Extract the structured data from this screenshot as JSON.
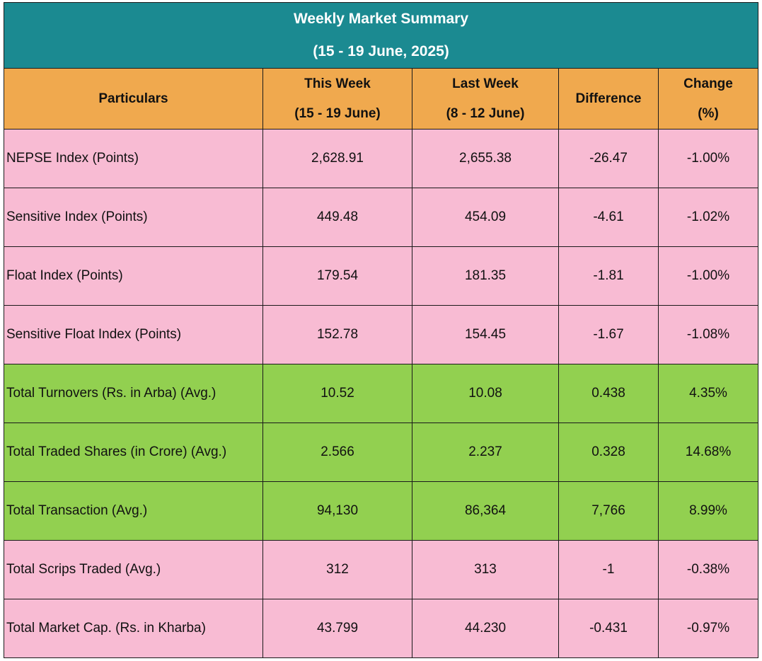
{
  "title": {
    "line1": "Weekly Market Summary",
    "line2": "(15 - 19 June, 2025)"
  },
  "headers": {
    "particulars": "Particulars",
    "this_week": {
      "line1": "This Week",
      "line2": "(15 - 19 June)"
    },
    "last_week": {
      "line1": "Last Week",
      "line2": "(8 - 12 June)"
    },
    "difference": "Difference",
    "change": {
      "line1": "Change",
      "line2": "(%)"
    }
  },
  "colors": {
    "title_bg": "#1b8a91",
    "header_bg": "#f0a94e",
    "index_rows_bg": "#f8bbd3",
    "turnover_rows_bg": "#92d050"
  },
  "rows": [
    {
      "label": "NEPSE Index (Points)",
      "this_week": "2,628.91",
      "last_week": "2,655.38",
      "difference": "-26.47",
      "change": "-1.00%",
      "color": "pink"
    },
    {
      "label": "Sensitive Index (Points)",
      "this_week": "449.48",
      "last_week": "454.09",
      "difference": "-4.61",
      "change": "-1.02%",
      "color": "pink"
    },
    {
      "label": "Float Index (Points)",
      "this_week": "179.54",
      "last_week": "181.35",
      "difference": "-1.81",
      "change": "-1.00%",
      "color": "pink"
    },
    {
      "label": "Sensitive Float Index (Points)",
      "this_week": "152.78",
      "last_week": "154.45",
      "difference": "-1.67",
      "change": "-1.08%",
      "color": "pink"
    },
    {
      "label": "Total Turnovers (Rs. in Arba) (Avg.)",
      "this_week": "10.52",
      "last_week": "10.08",
      "difference": "0.438",
      "change": "4.35%",
      "color": "green"
    },
    {
      "label": "Total Traded Shares (in Crore) (Avg.)",
      "this_week": "2.566",
      "last_week": "2.237",
      "difference": "0.328",
      "change": "14.68%",
      "color": "green"
    },
    {
      "label": "Total Transaction (Avg.)",
      "this_week": "94,130",
      "last_week": "86,364",
      "difference": "7,766",
      "change": "8.99%",
      "color": "green"
    },
    {
      "label": "Total Scrips Traded (Avg.)",
      "this_week": "312",
      "last_week": "313",
      "difference": "-1",
      "change": "-0.38%",
      "color": "pink"
    },
    {
      "label": "Total Market Cap. (Rs. in Kharba)",
      "this_week": "43.799",
      "last_week": "44.230",
      "difference": "-0.431",
      "change": "-0.97%",
      "color": "pink"
    }
  ]
}
